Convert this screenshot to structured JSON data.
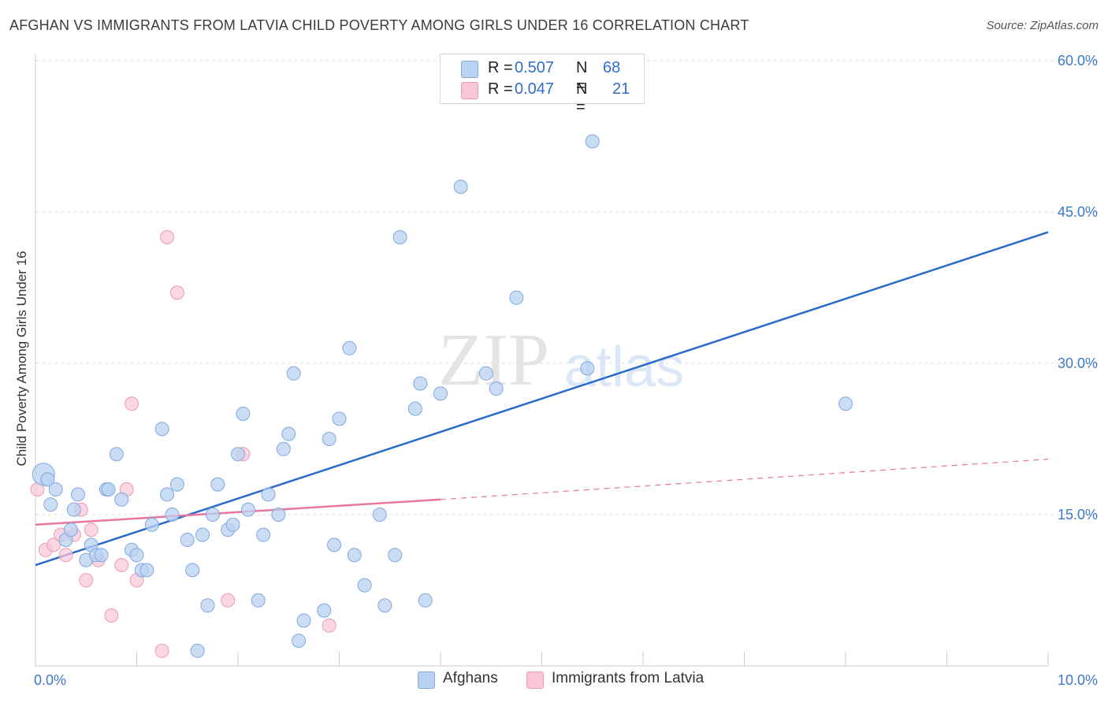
{
  "header": {
    "title": "AFGHAN VS IMMIGRANTS FROM LATVIA CHILD POVERTY AMONG GIRLS UNDER 16 CORRELATION CHART",
    "source": "Source: ZipAtlas.com"
  },
  "watermark": {
    "zip": "ZIP",
    "atlas": "atlas"
  },
  "legend": {
    "rows": [
      {
        "r_label": "R =",
        "r_value": "0.507",
        "n_label": "N =",
        "n_value": "68",
        "color": "#a8c8f0"
      },
      {
        "r_label": "R =",
        "r_value": "0.047",
        "n_label": "N =",
        "n_value": "21",
        "color": "#f7b8cb"
      }
    ]
  },
  "bottom_legend": {
    "afghans": "Afghans",
    "latvia": "Immigrants from Latvia"
  },
  "colors": {
    "afghan_fill": "#b9d2f2",
    "afghan_stroke": "#7fa9e0",
    "afghan_line": "#2a6bc9",
    "latvia_fill": "#f8c6d5",
    "latvia_stroke": "#ee9ab4",
    "latvia_line": "#e8769d",
    "tick_label": "#3f78c8",
    "grid": "#dddddd"
  },
  "chart_data": {
    "type": "scatter",
    "title": "AFGHAN VS IMMIGRANTS FROM LATVIA CHILD POVERTY AMONG GIRLS UNDER 16 CORRELATION CHART",
    "xlabel": "",
    "ylabel": "Child Poverty Among Girls Under 16",
    "xlim": [
      0,
      10
    ],
    "ylim": [
      0,
      60
    ],
    "x_tick_labels": [
      "0.0%",
      "10.0%"
    ],
    "y_tick_labels": [
      "15.0%",
      "30.0%",
      "45.0%",
      "60.0%"
    ],
    "y_ticks": [
      15,
      30,
      45,
      60
    ],
    "grid": true,
    "legend_placement": "top-center",
    "series": [
      {
        "name": "Afghans",
        "points": [
          [
            0.08,
            19.0
          ],
          [
            0.12,
            18.5
          ],
          [
            0.15,
            16.0
          ],
          [
            0.2,
            17.5
          ],
          [
            0.3,
            12.5
          ],
          [
            0.35,
            13.5
          ],
          [
            0.38,
            15.5
          ],
          [
            0.42,
            17.0
          ],
          [
            0.5,
            10.5
          ],
          [
            0.55,
            12.0
          ],
          [
            0.6,
            11.0
          ],
          [
            0.65,
            11.0
          ],
          [
            0.7,
            17.5
          ],
          [
            0.72,
            17.5
          ],
          [
            0.8,
            21.0
          ],
          [
            0.85,
            16.5
          ],
          [
            0.95,
            11.5
          ],
          [
            1.0,
            11.0
          ],
          [
            1.05,
            9.5
          ],
          [
            1.1,
            9.5
          ],
          [
            1.15,
            14.0
          ],
          [
            1.25,
            23.5
          ],
          [
            1.3,
            17.0
          ],
          [
            1.35,
            15.0
          ],
          [
            1.4,
            18.0
          ],
          [
            1.5,
            12.5
          ],
          [
            1.55,
            9.5
          ],
          [
            1.65,
            13.0
          ],
          [
            1.7,
            6.0
          ],
          [
            1.75,
            15.0
          ],
          [
            1.8,
            18.0
          ],
          [
            1.9,
            13.5
          ],
          [
            1.95,
            14.0
          ],
          [
            2.0,
            21.0
          ],
          [
            2.05,
            25.0
          ],
          [
            2.1,
            15.5
          ],
          [
            2.2,
            6.5
          ],
          [
            2.25,
            13.0
          ],
          [
            2.3,
            17.0
          ],
          [
            2.4,
            15.0
          ],
          [
            2.45,
            21.5
          ],
          [
            2.5,
            23.0
          ],
          [
            2.55,
            29.0
          ],
          [
            2.6,
            2.5
          ],
          [
            2.65,
            4.5
          ],
          [
            2.85,
            5.5
          ],
          [
            2.9,
            22.5
          ],
          [
            2.95,
            12.0
          ],
          [
            3.0,
            24.5
          ],
          [
            3.1,
            31.5
          ],
          [
            3.15,
            11.0
          ],
          [
            3.25,
            8.0
          ],
          [
            3.4,
            15.0
          ],
          [
            3.45,
            6.0
          ],
          [
            3.55,
            11.0
          ],
          [
            3.6,
            42.5
          ],
          [
            3.75,
            25.5
          ],
          [
            3.8,
            28.0
          ],
          [
            3.85,
            6.5
          ],
          [
            4.0,
            27.0
          ],
          [
            4.2,
            47.5
          ],
          [
            4.45,
            29.0
          ],
          [
            4.55,
            27.5
          ],
          [
            4.75,
            36.5
          ],
          [
            5.45,
            29.5
          ],
          [
            5.5,
            52.0
          ],
          [
            8.0,
            26.0
          ],
          [
            1.6,
            1.5
          ]
        ]
      },
      {
        "name": "Immigrants from Latvia",
        "points": [
          [
            0.02,
            17.5
          ],
          [
            0.1,
            11.5
          ],
          [
            0.18,
            12.0
          ],
          [
            0.25,
            13.0
          ],
          [
            0.3,
            11.0
          ],
          [
            0.38,
            13.0
          ],
          [
            0.45,
            15.5
          ],
          [
            0.5,
            8.5
          ],
          [
            0.55,
            13.5
          ],
          [
            0.62,
            10.5
          ],
          [
            0.75,
            5.0
          ],
          [
            0.85,
            10.0
          ],
          [
            0.9,
            17.5
          ],
          [
            0.95,
            26.0
          ],
          [
            1.0,
            8.5
          ],
          [
            1.25,
            1.5
          ],
          [
            1.3,
            42.5
          ],
          [
            1.4,
            37.0
          ],
          [
            1.9,
            6.5
          ],
          [
            2.05,
            21.0
          ],
          [
            2.9,
            4.0
          ]
        ]
      }
    ],
    "trend_lines": [
      {
        "series": "Afghans",
        "x": [
          0,
          10
        ],
        "y": [
          10.0,
          43.0
        ],
        "style": "solid"
      },
      {
        "series": "Immigrants from Latvia",
        "x": [
          0,
          4
        ],
        "y": [
          14.0,
          16.5
        ],
        "style": "solid"
      },
      {
        "series": "Immigrants from Latvia",
        "x": [
          4,
          10
        ],
        "y": [
          16.5,
          20.5
        ],
        "style": "dashed"
      }
    ]
  }
}
